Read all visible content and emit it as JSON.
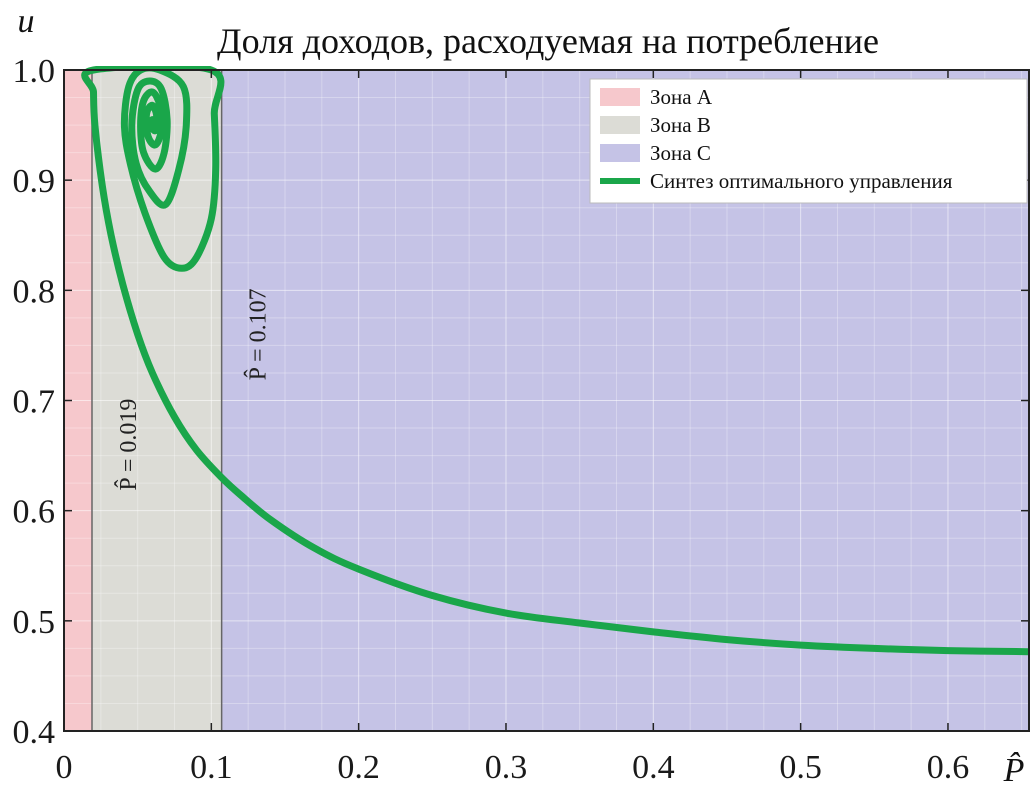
{
  "chart_data": {
    "type": "line",
    "title": "Доля доходов, расходуемая на потребление",
    "xlabel": "P̂",
    "ylabel": "u",
    "xlim": [
      0,
      0.655
    ],
    "ylim": [
      0.4,
      1.0
    ],
    "x_ticks": [
      "0",
      "0.1",
      "0.2",
      "0.3",
      "0.4",
      "0.5",
      "0.6"
    ],
    "y_ticks": [
      "0.4",
      "0.5",
      "0.6",
      "0.7",
      "0.8",
      "0.9",
      "1.0"
    ],
    "grid": true,
    "legend_position": "top-right",
    "zones": [
      {
        "name": "Зона A",
        "x_from": 0,
        "x_to": 0.019,
        "color": "#f6c8cc"
      },
      {
        "name": "Зона B",
        "x_from": 0.019,
        "x_to": 0.107,
        "color": "#dcdcd6"
      },
      {
        "name": "Зона C",
        "x_from": 0.107,
        "x_to": 0.655,
        "color": "#c5c3e6"
      }
    ],
    "annotations": [
      {
        "text": "P̂ = 0.019",
        "x": 0.019,
        "y": 0.66
      },
      {
        "text": "P̂ = 0.107",
        "x": 0.107,
        "y": 0.76
      }
    ],
    "series": [
      {
        "name": "Синтез оптимального управления",
        "color": "#1aa64a",
        "points": [
          [
            0.655,
            0.472
          ],
          [
            0.6,
            0.473
          ],
          [
            0.55,
            0.475
          ],
          [
            0.5,
            0.478
          ],
          [
            0.45,
            0.483
          ],
          [
            0.4,
            0.49
          ],
          [
            0.35,
            0.498
          ],
          [
            0.3,
            0.507
          ],
          [
            0.25,
            0.523
          ],
          [
            0.2,
            0.547
          ],
          [
            0.17,
            0.566
          ],
          [
            0.14,
            0.592
          ],
          [
            0.12,
            0.614
          ],
          [
            0.107,
            0.63
          ],
          [
            0.09,
            0.655
          ],
          [
            0.075,
            0.685
          ],
          [
            0.06,
            0.725
          ],
          [
            0.05,
            0.76
          ],
          [
            0.04,
            0.805
          ],
          [
            0.032,
            0.85
          ],
          [
            0.026,
            0.895
          ],
          [
            0.021,
            0.95
          ],
          [
            0.02,
            0.98
          ],
          [
            0.02,
            1.0
          ],
          [
            0.1,
            1.0
          ],
          [
            0.102,
            0.96
          ],
          [
            0.103,
            0.91
          ],
          [
            0.1,
            0.865
          ],
          [
            0.09,
            0.83
          ],
          [
            0.08,
            0.82
          ],
          [
            0.068,
            0.83
          ],
          [
            0.055,
            0.87
          ],
          [
            0.045,
            0.915
          ],
          [
            0.041,
            0.95
          ],
          [
            0.044,
            0.985
          ],
          [
            0.052,
            1.0
          ],
          [
            0.065,
            1.0
          ],
          [
            0.081,
            0.985
          ],
          [
            0.083,
            0.95
          ],
          [
            0.078,
            0.91
          ],
          [
            0.069,
            0.878
          ],
          [
            0.058,
            0.89
          ],
          [
            0.049,
            0.915
          ],
          [
            0.046,
            0.95
          ],
          [
            0.05,
            0.982
          ],
          [
            0.058,
            0.99
          ],
          [
            0.066,
            0.983
          ],
          [
            0.07,
            0.955
          ],
          [
            0.068,
            0.925
          ],
          [
            0.062,
            0.91
          ],
          [
            0.054,
            0.925
          ],
          [
            0.052,
            0.95
          ],
          [
            0.054,
            0.972
          ],
          [
            0.06,
            0.98
          ],
          [
            0.065,
            0.968
          ],
          [
            0.066,
            0.945
          ],
          [
            0.062,
            0.932
          ],
          [
            0.057,
            0.94
          ],
          [
            0.056,
            0.96
          ],
          [
            0.06,
            0.968
          ],
          [
            0.063,
            0.958
          ],
          [
            0.062,
            0.945
          ],
          [
            0.059,
            0.95
          ],
          [
            0.06,
            0.955
          ]
        ]
      }
    ]
  }
}
